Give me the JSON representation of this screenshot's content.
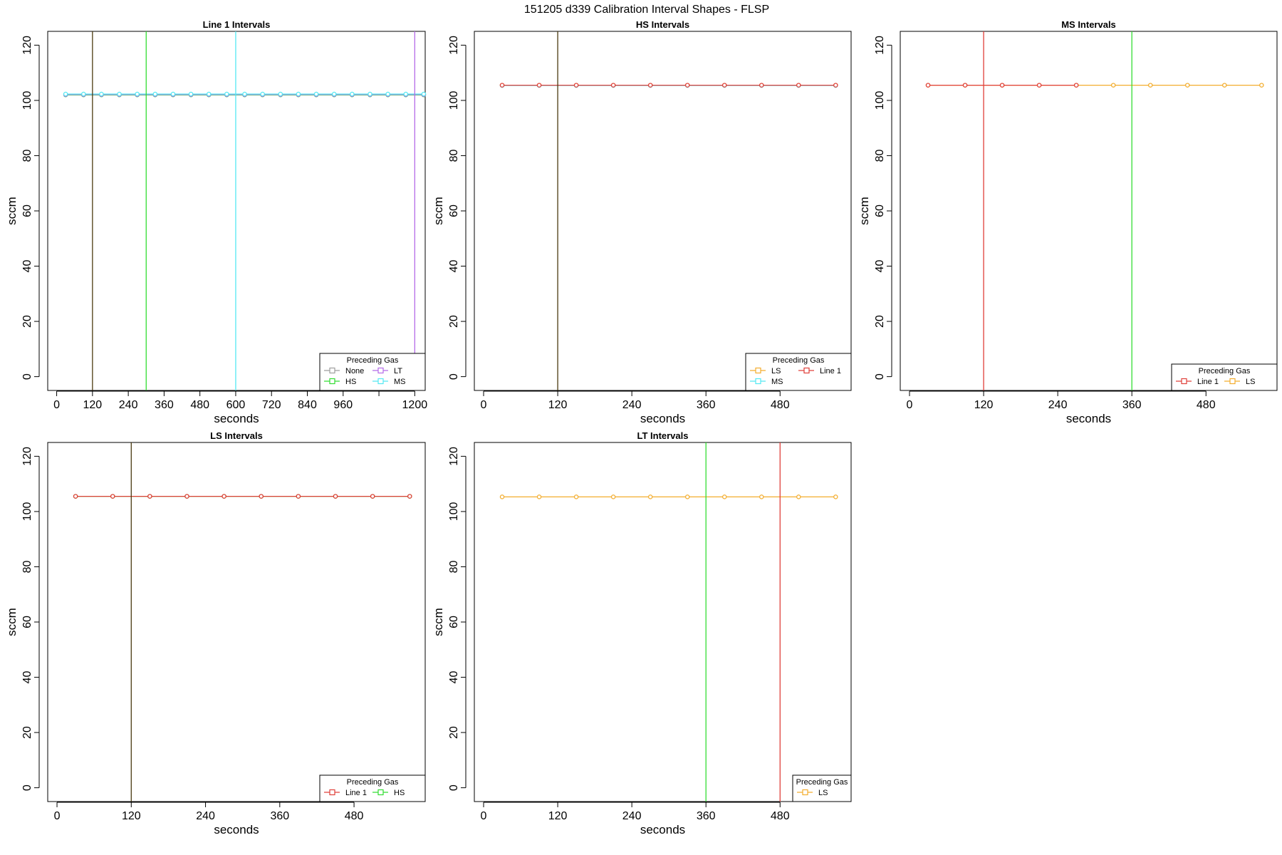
{
  "figure": {
    "title": "151205   d339   Calibration Interval Shapes - FLSP"
  },
  "colors": {
    "None": "#9e9e9e",
    "HS": "#33dd33",
    "LT": "#b56be8",
    "MS": "#55e8f2",
    "LS": "#f3ad2e",
    "Line 1": "#e0403a",
    "dark_overlay": "#4a3a10"
  },
  "chart_data": [
    {
      "type": "line",
      "title": "Line 1 Intervals",
      "xlabel": "seconds",
      "ylabel": "sccm",
      "xlim": [
        -30,
        1235
      ],
      "ylim": [
        -5,
        125
      ],
      "xticks": [
        0,
        120,
        240,
        360,
        480,
        600,
        720,
        840,
        960,
        1080,
        1200
      ],
      "xtick_labels": [
        "0",
        "120",
        "240",
        "360",
        "480",
        "600",
        "720",
        "840",
        "960",
        "",
        "1200"
      ],
      "yticks": [
        0,
        20,
        40,
        60,
        80,
        100,
        120
      ],
      "vlines": [
        {
          "x": 120,
          "color_key": "dark_overlay"
        },
        {
          "x": 300,
          "color_key": "HS"
        },
        {
          "x": 600,
          "color_key": "MS"
        },
        {
          "x": 1200,
          "color_key": "LT"
        }
      ],
      "series": [
        {
          "color_key": "None",
          "x": [
            30,
            90,
            150,
            210,
            270,
            330,
            390,
            450,
            510,
            570,
            630,
            690,
            750,
            810,
            870,
            930,
            990,
            1050,
            1110,
            1170,
            1230
          ],
          "values": [
            102.2,
            102.2,
            102.2,
            102.2,
            102.2,
            102.2,
            102.2,
            102.2,
            102.2,
            102.2,
            102.2,
            102.2,
            102.2,
            102.2,
            102.2,
            102.2,
            102.2,
            102.2,
            102.2,
            102.2,
            102.2
          ]
        },
        {
          "color_key": "HS",
          "x": [
            30,
            90,
            150,
            210,
            270,
            330,
            390,
            450,
            510,
            570,
            630,
            690,
            750,
            810,
            870,
            930,
            990,
            1050,
            1110,
            1170,
            1230
          ],
          "values": [
            102.0,
            102.0,
            102.0,
            102.0,
            102.0,
            102.0,
            102.0,
            102.0,
            102.0,
            102.0,
            102.0,
            102.0,
            102.0,
            102.0,
            102.0,
            102.0,
            102.0,
            102.0,
            102.0,
            102.0,
            102.0
          ]
        },
        {
          "color_key": "LT",
          "x": [
            30,
            90,
            150,
            210,
            270,
            330,
            390,
            450,
            510,
            570,
            630,
            690,
            750,
            810,
            870,
            930,
            990,
            1050,
            1110,
            1170,
            1230
          ],
          "values": [
            102.1,
            102.1,
            102.1,
            102.1,
            102.1,
            102.1,
            102.1,
            102.1,
            102.1,
            102.1,
            102.1,
            102.1,
            102.1,
            102.1,
            102.1,
            102.1,
            102.1,
            102.1,
            102.1,
            102.1,
            102.1
          ]
        },
        {
          "color_key": "MS",
          "x": [
            30,
            90,
            150,
            210,
            270,
            330,
            390,
            450,
            510,
            570,
            630,
            690,
            750,
            810,
            870,
            930,
            990,
            1050,
            1110,
            1170,
            1230
          ],
          "values": [
            102.3,
            102.3,
            102.3,
            102.3,
            102.3,
            102.3,
            102.3,
            102.3,
            102.3,
            102.3,
            102.3,
            102.3,
            102.3,
            102.3,
            102.3,
            102.3,
            102.3,
            102.3,
            102.3,
            102.3,
            102.3
          ]
        }
      ],
      "legend": {
        "title": "Preceding Gas",
        "placement": "bottom-right",
        "columns": 2,
        "items": [
          {
            "label": "None",
            "color_key": "None"
          },
          {
            "label": "LT",
            "color_key": "LT"
          },
          {
            "label": "HS",
            "color_key": "HS"
          },
          {
            "label": "MS",
            "color_key": "MS"
          }
        ]
      }
    },
    {
      "type": "line",
      "title": "HS Intervals",
      "xlabel": "seconds",
      "ylabel": "sccm",
      "xlim": [
        -15,
        595
      ],
      "ylim": [
        -5,
        125
      ],
      "xticks": [
        0,
        120,
        240,
        360,
        480
      ],
      "xtick_labels": [
        "0",
        "120",
        "240",
        "360",
        "480"
      ],
      "yticks": [
        0,
        20,
        40,
        60,
        80,
        100,
        120
      ],
      "vlines": [
        {
          "x": 120,
          "color_key": "dark_overlay"
        }
      ],
      "series": [
        {
          "color_key": "LS",
          "x": [
            30,
            90,
            150,
            210,
            270,
            330,
            390,
            450,
            510,
            570
          ],
          "values": [
            105.5,
            105.5,
            105.5,
            105.5,
            105.5,
            105.5,
            105.5,
            105.5,
            105.5,
            105.5
          ]
        },
        {
          "color_key": "MS",
          "x": [
            30,
            90,
            150,
            210,
            270,
            330,
            390,
            450,
            510,
            570
          ],
          "values": [
            105.4,
            105.4,
            105.4,
            105.4,
            105.4,
            105.4,
            105.4,
            105.4,
            105.4,
            105.4
          ]
        },
        {
          "color_key": "Line 1",
          "x": [
            30,
            90,
            150,
            210,
            270,
            330,
            390,
            450,
            510,
            570
          ],
          "values": [
            105.5,
            105.5,
            105.5,
            105.5,
            105.5,
            105.5,
            105.5,
            105.5,
            105.5,
            105.5
          ]
        }
      ],
      "legend": {
        "title": "Preceding Gas",
        "placement": "bottom-right",
        "columns": 2,
        "items": [
          {
            "label": "LS",
            "color_key": "LS"
          },
          {
            "label": "Line 1",
            "color_key": "Line 1"
          },
          {
            "label": "MS",
            "color_key": "MS"
          }
        ]
      }
    },
    {
      "type": "line",
      "title": "MS Intervals",
      "xlabel": "seconds",
      "ylabel": "sccm",
      "xlim": [
        -15,
        595
      ],
      "ylim": [
        -5,
        125
      ],
      "xticks": [
        0,
        120,
        240,
        360,
        480
      ],
      "xtick_labels": [
        "0",
        "120",
        "240",
        "360",
        "480"
      ],
      "yticks": [
        0,
        20,
        40,
        60,
        80,
        100,
        120
      ],
      "vlines": [
        {
          "x": 120,
          "color_key": "Line 1"
        },
        {
          "x": 360,
          "color_key": "HS"
        }
      ],
      "series": [
        {
          "color_key": "LS",
          "x": [
            30,
            90,
            150,
            210,
            270,
            330,
            390,
            450,
            510,
            570
          ],
          "values": [
            105.5,
            105.5,
            105.5,
            105.5,
            105.5,
            105.5,
            105.5,
            105.5,
            105.5,
            105.5
          ]
        },
        {
          "color_key": "Line 1",
          "x": [
            30,
            90,
            150,
            210,
            270
          ],
          "values": [
            105.5,
            105.5,
            105.5,
            105.5,
            105.5
          ]
        }
      ],
      "legend": {
        "title": "Preceding Gas",
        "placement": "bottom-right",
        "columns": 2,
        "items": [
          {
            "label": "Line 1",
            "color_key": "Line 1"
          },
          {
            "label": "LS",
            "color_key": "LS"
          }
        ]
      }
    },
    {
      "type": "line",
      "title": "LS Intervals",
      "xlabel": "seconds",
      "ylabel": "sccm",
      "xlim": [
        -15,
        595
      ],
      "ylim": [
        -5,
        125
      ],
      "xticks": [
        0,
        120,
        240,
        360,
        480
      ],
      "xtick_labels": [
        "0",
        "120",
        "240",
        "360",
        "480"
      ],
      "yticks": [
        0,
        20,
        40,
        60,
        80,
        100,
        120
      ],
      "vlines": [
        {
          "x": 120,
          "color_key": "dark_overlay"
        }
      ],
      "series": [
        {
          "color_key": "HS",
          "x": [
            30,
            90,
            150,
            210,
            270,
            330,
            390,
            450,
            510,
            570
          ],
          "values": [
            105.5,
            105.5,
            105.5,
            105.5,
            105.5,
            105.5,
            105.5,
            105.5,
            105.5,
            105.5
          ]
        },
        {
          "color_key": "Line 1",
          "x": [
            30,
            90,
            150,
            210,
            270,
            330,
            390,
            450,
            510,
            570
          ],
          "values": [
            105.5,
            105.5,
            105.5,
            105.5,
            105.5,
            105.5,
            105.5,
            105.5,
            105.5,
            105.5
          ]
        }
      ],
      "legend": {
        "title": "Preceding Gas",
        "placement": "bottom-right",
        "columns": 2,
        "items": [
          {
            "label": "Line 1",
            "color_key": "Line 1"
          },
          {
            "label": "HS",
            "color_key": "HS"
          }
        ]
      }
    },
    {
      "type": "line",
      "title": "LT Intervals",
      "xlabel": "seconds",
      "ylabel": "sccm",
      "xlim": [
        -15,
        595
      ],
      "ylim": [
        -5,
        125
      ],
      "xticks": [
        0,
        120,
        240,
        360,
        480
      ],
      "xtick_labels": [
        "0",
        "120",
        "240",
        "360",
        "480"
      ],
      "yticks": [
        0,
        20,
        40,
        60,
        80,
        100,
        120
      ],
      "vlines": [
        {
          "x": 360,
          "color_key": "HS"
        },
        {
          "x": 480,
          "color_key": "Line 1"
        }
      ],
      "series": [
        {
          "color_key": "LS",
          "x": [
            30,
            90,
            150,
            210,
            270,
            330,
            390,
            450,
            510,
            570
          ],
          "values": [
            105.3,
            105.3,
            105.3,
            105.3,
            105.3,
            105.3,
            105.3,
            105.3,
            105.3,
            105.3
          ]
        }
      ],
      "legend": {
        "title": "Preceding Gas",
        "placement": "bottom-right",
        "columns": 1,
        "items": [
          {
            "label": "LS",
            "color_key": "LS"
          }
        ]
      }
    }
  ]
}
